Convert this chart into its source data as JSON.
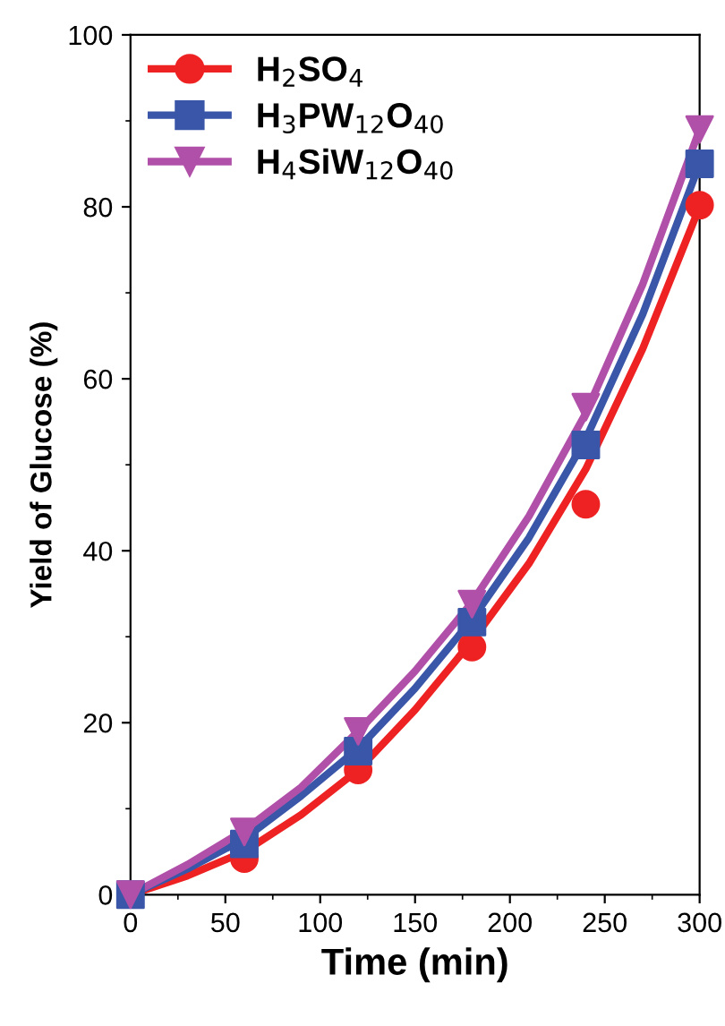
{
  "chart_data": {
    "type": "scatter",
    "xlabel": "Time (min)",
    "ylabel": "Yield of Glucose (%)",
    "xlim": [
      0,
      300
    ],
    "ylim": [
      0,
      100
    ],
    "xticks": [
      0,
      50,
      100,
      150,
      200,
      250,
      300
    ],
    "yticks": [
      0,
      20,
      40,
      60,
      80,
      100
    ],
    "grid": false,
    "legend": "top left",
    "series": [
      {
        "type": "line",
        "color": "#ee2222",
        "marker": "none",
        "x": [
          0,
          30,
          60,
          90,
          120,
          150,
          180,
          210,
          240,
          270,
          300
        ],
        "values": [
          0,
          2.2,
          5,
          9.3,
          14.5,
          21.5,
          29.5,
          38.5,
          49.5,
          63.5,
          80
        ]
      },
      {
        "type": "line",
        "color": "#3a56a8",
        "marker": "none",
        "x": [
          0,
          30,
          60,
          90,
          120,
          150,
          180,
          210,
          240,
          270,
          300
        ],
        "values": [
          0,
          3,
          6.5,
          11.5,
          17,
          24,
          32,
          41.5,
          53,
          67.5,
          85
        ]
      },
      {
        "type": "line",
        "color": "#b050a8",
        "marker": "none",
        "x": [
          0,
          30,
          60,
          90,
          120,
          150,
          180,
          210,
          240,
          270,
          300
        ],
        "values": [
          0,
          3.5,
          7.5,
          12.5,
          19,
          26,
          34,
          44,
          56,
          71,
          89
        ]
      },
      {
        "name": "H$_{2}$SO$_{4}$",
        "color": "#ee2222",
        "marker": "circle",
        "x": [
          60,
          120,
          180,
          240,
          300
        ],
        "values": [
          4.2,
          14.5,
          28.8,
          45.4,
          80.2
        ]
      },
      {
        "name": "H$_{3}$PW$_{12}$O$_{40}$",
        "color": "#3a56a8",
        "marker": "square",
        "x": [
          0,
          60,
          120,
          180,
          240,
          300
        ],
        "values": [
          0,
          5.9,
          16.7,
          31.7,
          52.3,
          85
        ]
      },
      {
        "name": "H$_{4}$SiW$_{12}$O$_{40}$",
        "color": "#b050a8",
        "marker": "triangle_down",
        "x": [
          0,
          60,
          120,
          180,
          240,
          300
        ],
        "values": [
          0,
          7.3,
          19,
          33.8,
          56.7,
          89
        ]
      }
    ]
  }
}
